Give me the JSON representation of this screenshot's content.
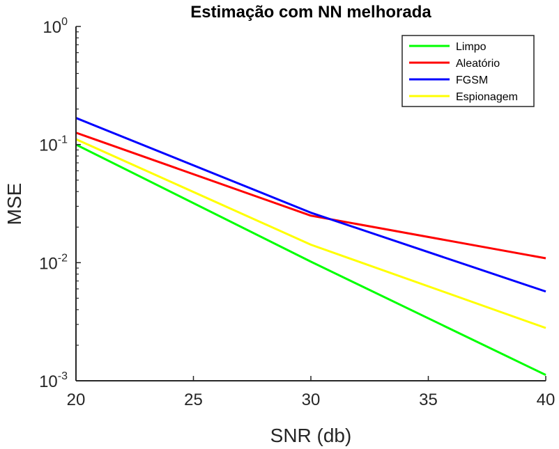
{
  "chart_data": {
    "type": "line",
    "title": "Estimação com NN melhorada",
    "xlabel": "SNR (db)",
    "ylabel": "MSE",
    "x": [
      20,
      30,
      40
    ],
    "xlim": [
      20,
      40
    ],
    "xticks": [
      "20",
      "25",
      "30",
      "35",
      "40"
    ],
    "ylim": [
      0.001,
      1
    ],
    "yscale": "log",
    "yticks": [
      {
        "base": "10",
        "exp": "-3"
      },
      {
        "base": "10",
        "exp": "-2"
      },
      {
        "base": "10",
        "exp": "-1"
      },
      {
        "base": "10",
        "exp": "0"
      }
    ],
    "grid": false,
    "legend_position": "top-right",
    "series": [
      {
        "name": "Limpo",
        "color": "#00ff00",
        "values": [
          0.1,
          0.0102,
          0.00112
        ]
      },
      {
        "name": "Aleatório",
        "color": "#ff0000",
        "values": [
          0.126,
          0.025,
          0.0109
        ]
      },
      {
        "name": "FGSM",
        "color": "#0000ff",
        "values": [
          0.168,
          0.0265,
          0.0057
        ]
      },
      {
        "name": "Espionagem",
        "color": "#ffff00",
        "values": [
          0.111,
          0.0142,
          0.0028
        ]
      }
    ]
  }
}
